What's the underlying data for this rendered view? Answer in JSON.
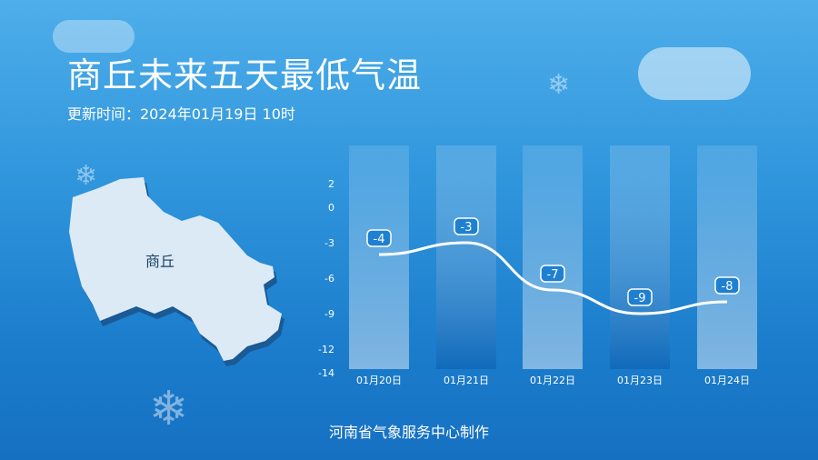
{
  "header": {
    "title": "商丘未来五天最低气温",
    "updated": "更新时间：2024年01月19日 10时"
  },
  "map": {
    "city_label": "商丘",
    "fill": "#dceaf6"
  },
  "footer": {
    "credit": "河南省气象服务中心制作"
  },
  "colors": {
    "line": "#ffffff",
    "label_bg": "#1f7fd0"
  },
  "chart_data": {
    "type": "line",
    "categories": [
      "01月20日",
      "01月21日",
      "01月22日",
      "01月23日",
      "01月24日"
    ],
    "series": [
      {
        "values": [
          -4,
          -3,
          -7,
          -9,
          -8
        ]
      }
    ],
    "data_labels": [
      "-4",
      "-3",
      "-7",
      "-9",
      "-8"
    ],
    "ylim": [
      -14,
      2
    ],
    "yticks": [
      "2",
      "0",
      "-3",
      "-6",
      "-9",
      "-12",
      "-14"
    ],
    "ytick_values": [
      2,
      0,
      -3,
      -6,
      -9,
      -12,
      -14
    ],
    "grid": false
  }
}
